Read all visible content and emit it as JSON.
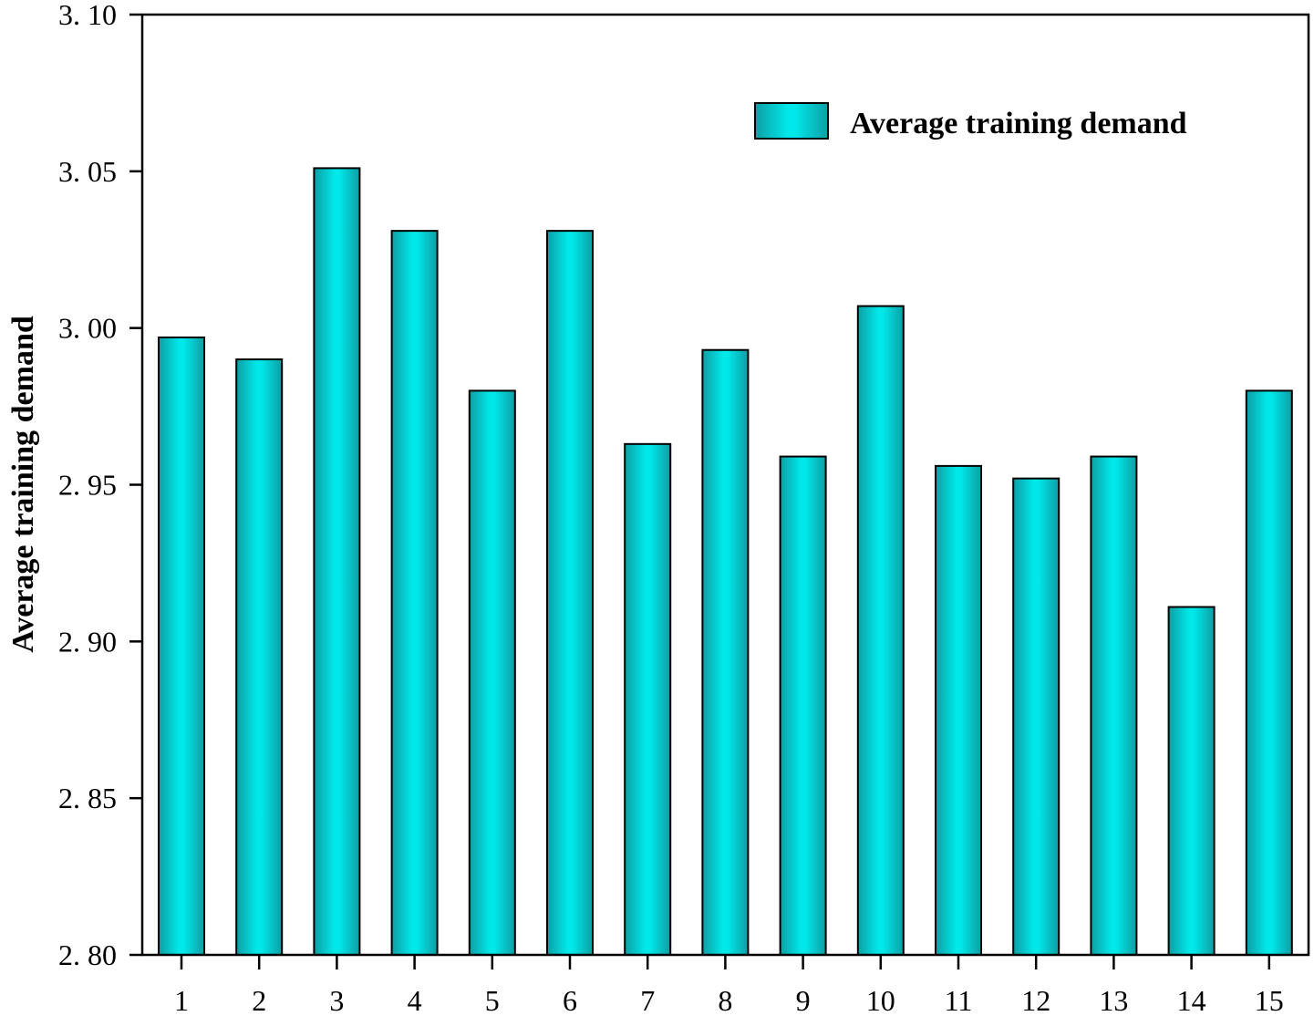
{
  "chart_data": {
    "type": "bar",
    "categories": [
      "1",
      "2",
      "3",
      "4",
      "5",
      "6",
      "7",
      "8",
      "9",
      "10",
      "11",
      "12",
      "13",
      "14",
      "15"
    ],
    "series": [
      {
        "name": "Average training demand",
        "values": [
          2.997,
          2.99,
          3.051,
          3.031,
          2.98,
          3.031,
          2.963,
          2.993,
          2.959,
          3.007,
          2.956,
          2.952,
          2.959,
          2.911,
          2.98
        ]
      }
    ],
    "xlabel": "",
    "ylabel": "Average training demand",
    "ylim": [
      2.8,
      3.1
    ],
    "yticks": [
      "2. 80",
      "2. 85",
      "2. 90",
      "2. 95",
      "3. 00",
      "3. 05",
      "3. 10"
    ],
    "legend": {
      "label": "Average training demand",
      "position": "top-right"
    },
    "grid": false,
    "colors": {
      "bar_edge": "#00CED1",
      "bar_center": "#00E8EA",
      "bar_dark": "#0E9EA3",
      "outline": "#000000"
    }
  }
}
